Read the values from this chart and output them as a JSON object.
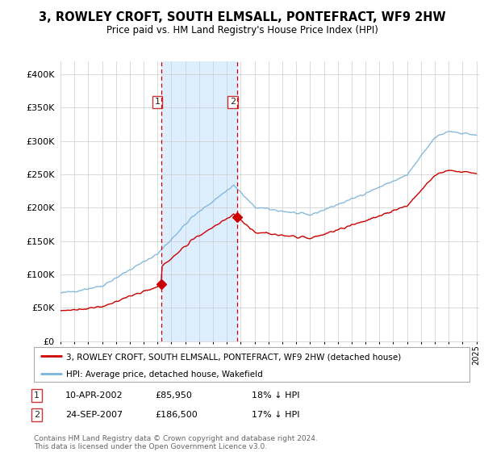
{
  "title": "3, ROWLEY CROFT, SOUTH ELMSALL, PONTEFRACT, WF9 2HW",
  "subtitle": "Price paid vs. HM Land Registry's House Price Index (HPI)",
  "hpi_color": "#7ab3d9",
  "price_color": "#cc0000",
  "marker1_year": 2002.28,
  "marker2_year": 2007.73,
  "transaction1": {
    "date": "10-APR-2002",
    "price": 85950,
    "rel": "18% ↓ HPI"
  },
  "transaction2": {
    "date": "24-SEP-2007",
    "price": 186500,
    "rel": "17% ↓ HPI"
  },
  "legend1": "3, ROWLEY CROFT, SOUTH ELMSALL, PONTEFRACT, WF9 2HW (detached house)",
  "legend2": "HPI: Average price, detached house, Wakefield",
  "footer": "Contains HM Land Registry data © Crown copyright and database right 2024.\nThis data is licensed under the Open Government Licence v3.0.",
  "ylim": [
    0,
    420000
  ],
  "yticks": [
    0,
    50000,
    100000,
    150000,
    200000,
    250000,
    300000,
    350000,
    400000
  ],
  "background_color": "#ffffff",
  "shaded_color": "#ddeeff"
}
